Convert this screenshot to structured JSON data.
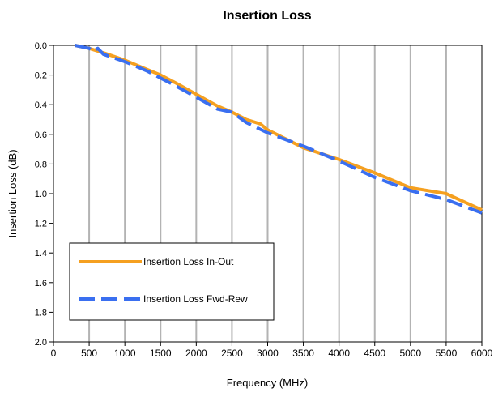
{
  "chart_data": {
    "type": "line",
    "title": "Insertion Loss",
    "xlabel": "Frequency (MHz)",
    "ylabel": "Insertion Loss (dB)",
    "xlim": [
      0,
      6000
    ],
    "ylim": [
      0,
      2.0
    ],
    "y_inverted": true,
    "x_ticks": [
      "0",
      "500",
      "1000",
      "1500",
      "2000",
      "2500",
      "3000",
      "3500",
      "4000",
      "4500",
      "5000",
      "5500",
      "6000"
    ],
    "y_ticks": [
      "0.0",
      "0.2",
      "0.4",
      "0.6",
      "0.8",
      "1.0",
      "1.2",
      "1.4",
      "1.6",
      "1.8",
      "2.0"
    ],
    "grid": "vertical",
    "legend_position": "bottom-left",
    "series": [
      {
        "name": "Insertion Loss In-Out",
        "color": "#f5a020",
        "dash": "solid",
        "points": [
          [
            300,
            0.0
          ],
          [
            500,
            0.02
          ],
          [
            700,
            0.05
          ],
          [
            1000,
            0.1
          ],
          [
            1300,
            0.16
          ],
          [
            1500,
            0.2
          ],
          [
            1700,
            0.25
          ],
          [
            2000,
            0.33
          ],
          [
            2300,
            0.41
          ],
          [
            2500,
            0.45
          ],
          [
            2700,
            0.5
          ],
          [
            2900,
            0.53
          ],
          [
            3000,
            0.57
          ],
          [
            3500,
            0.69
          ],
          [
            4000,
            0.77
          ],
          [
            4500,
            0.86
          ],
          [
            5000,
            0.96
          ],
          [
            5500,
            1.0
          ],
          [
            6000,
            1.11
          ]
        ]
      },
      {
        "name": "Insertion Loss Fwd-Rew",
        "color": "#3a6ff0",
        "dash": "dashed",
        "points": [
          [
            300,
            0.0
          ],
          [
            500,
            0.02
          ],
          [
            560,
            0.04
          ],
          [
            620,
            0.02
          ],
          [
            700,
            0.06
          ],
          [
            1000,
            0.11
          ],
          [
            1300,
            0.17
          ],
          [
            1500,
            0.22
          ],
          [
            1700,
            0.27
          ],
          [
            2000,
            0.35
          ],
          [
            2300,
            0.43
          ],
          [
            2500,
            0.45
          ],
          [
            2700,
            0.52
          ],
          [
            3000,
            0.59
          ],
          [
            3500,
            0.68
          ],
          [
            4000,
            0.78
          ],
          [
            4500,
            0.89
          ],
          [
            5000,
            0.98
          ],
          [
            5500,
            1.04
          ],
          [
            6000,
            1.13
          ]
        ]
      }
    ]
  }
}
